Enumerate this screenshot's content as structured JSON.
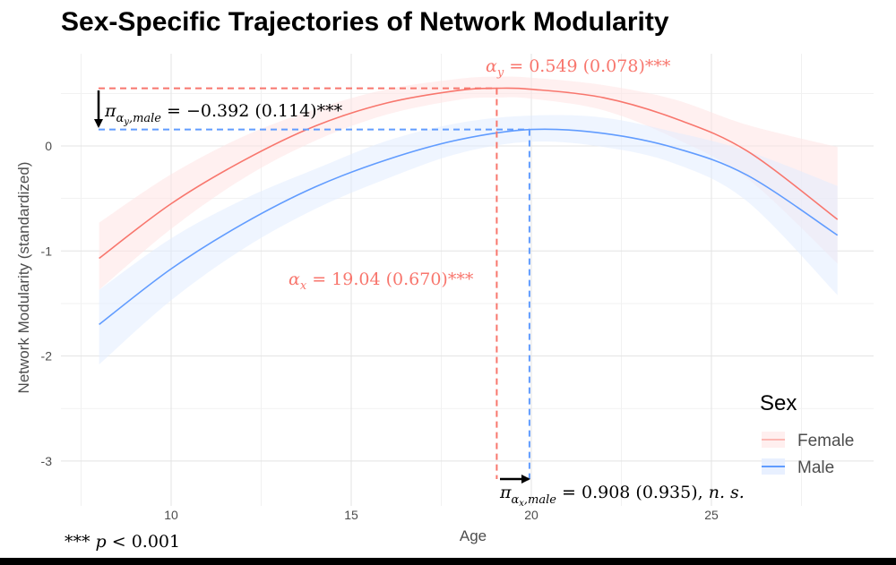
{
  "chart_data": {
    "type": "line",
    "title": "Sex-Specific Trajectories of Network Modularity",
    "xlabel": "Age",
    "ylabel": "Network Modularity (standardized)",
    "xlim": [
      7.0,
      29.0
    ],
    "ylim": [
      -3.4,
      0.9
    ],
    "x_ticks": [
      10,
      15,
      20,
      25
    ],
    "y_ticks": [
      0,
      -1,
      -2,
      -3
    ],
    "grid": true,
    "legend": {
      "title": "Sex",
      "position": "right-bottom",
      "entries": [
        "Female",
        "Male"
      ]
    },
    "series": [
      {
        "name": "Female",
        "color": "#F8766D",
        "band_color": "#FFE4E4",
        "x": [
          8,
          10,
          12,
          14,
          16,
          18,
          19.04,
          20,
          22,
          24,
          26,
          28.5
        ],
        "y": [
          -1.07,
          -0.55,
          -0.14,
          0.19,
          0.41,
          0.53,
          0.549,
          0.54,
          0.46,
          0.26,
          -0.05,
          -0.7
        ],
        "ci_low": [
          -1.37,
          -0.79,
          -0.31,
          0.05,
          0.3,
          0.44,
          0.46,
          0.45,
          0.34,
          0.07,
          -0.31,
          -1.12
        ],
        "ci_high": [
          -0.73,
          -0.27,
          0.09,
          0.35,
          0.54,
          0.64,
          0.66,
          0.65,
          0.58,
          0.44,
          0.2,
          -0.01
        ]
      },
      {
        "name": "Male",
        "color": "#619CFF",
        "band_color": "#E2ECFF",
        "x": [
          8,
          10,
          12,
          14,
          16,
          18,
          20,
          22,
          24,
          26,
          28.5
        ],
        "y": [
          -1.7,
          -1.17,
          -0.74,
          -0.39,
          -0.13,
          0.06,
          0.157,
          0.12,
          -0.02,
          -0.28,
          -0.85
        ],
        "ci_low": [
          -2.08,
          -1.47,
          -0.98,
          -0.6,
          -0.31,
          -0.07,
          0.04,
          -0.01,
          -0.17,
          -0.53,
          -1.42
        ],
        "ci_high": [
          -1.37,
          -0.88,
          -0.51,
          -0.22,
          0.05,
          0.22,
          0.29,
          0.27,
          0.13,
          -0.05,
          -0.38
        ]
      }
    ],
    "annotations": {
      "female_peak_y": "α_y = 0.549 (0.078)***",
      "male_peak_y_diff": "π_{α_y,male} = −0.392 (0.114)***",
      "female_peak_x": "α_x = 19.04 (0.670)***",
      "male_peak_x_diff": "π_{α_x,male} = 0.908 (0.935), n. s.",
      "footnote": "*** p < 0.001"
    },
    "reference_lines": {
      "female_peak_age": 19.04,
      "female_peak_value": 0.549,
      "male_peak_age": 19.948,
      "male_peak_value": 0.157
    }
  }
}
